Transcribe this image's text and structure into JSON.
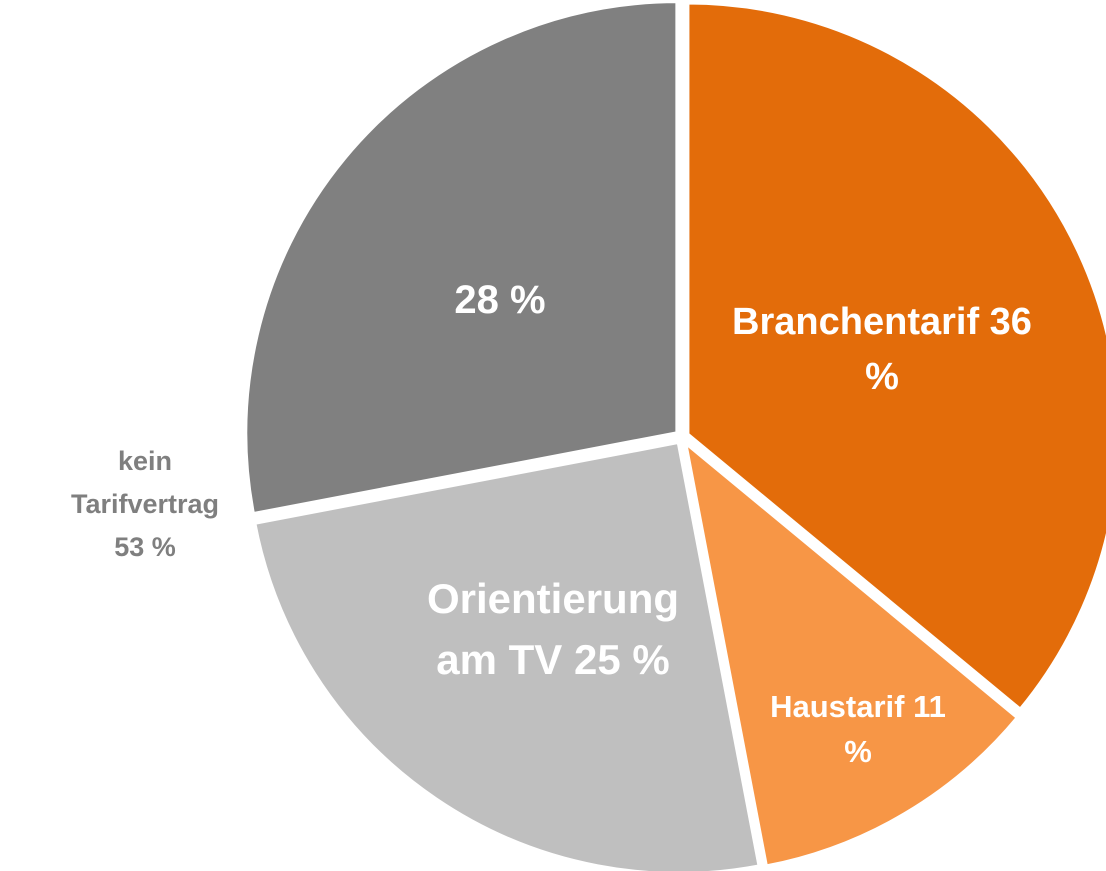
{
  "chart_data": {
    "type": "pie",
    "categories": [
      "Branchentarif",
      "Haustarif",
      "Orientierung am TV",
      null
    ],
    "values": [
      36,
      11,
      25,
      28
    ],
    "value_labels": [
      "36 %",
      "11 %",
      "25 %",
      "28 %"
    ],
    "colors": [
      "#e36c0a",
      "#f79646",
      "#bfbfbf",
      "#808080"
    ],
    "annotation": "kein Tarifvertrag 53 %"
  }
}
